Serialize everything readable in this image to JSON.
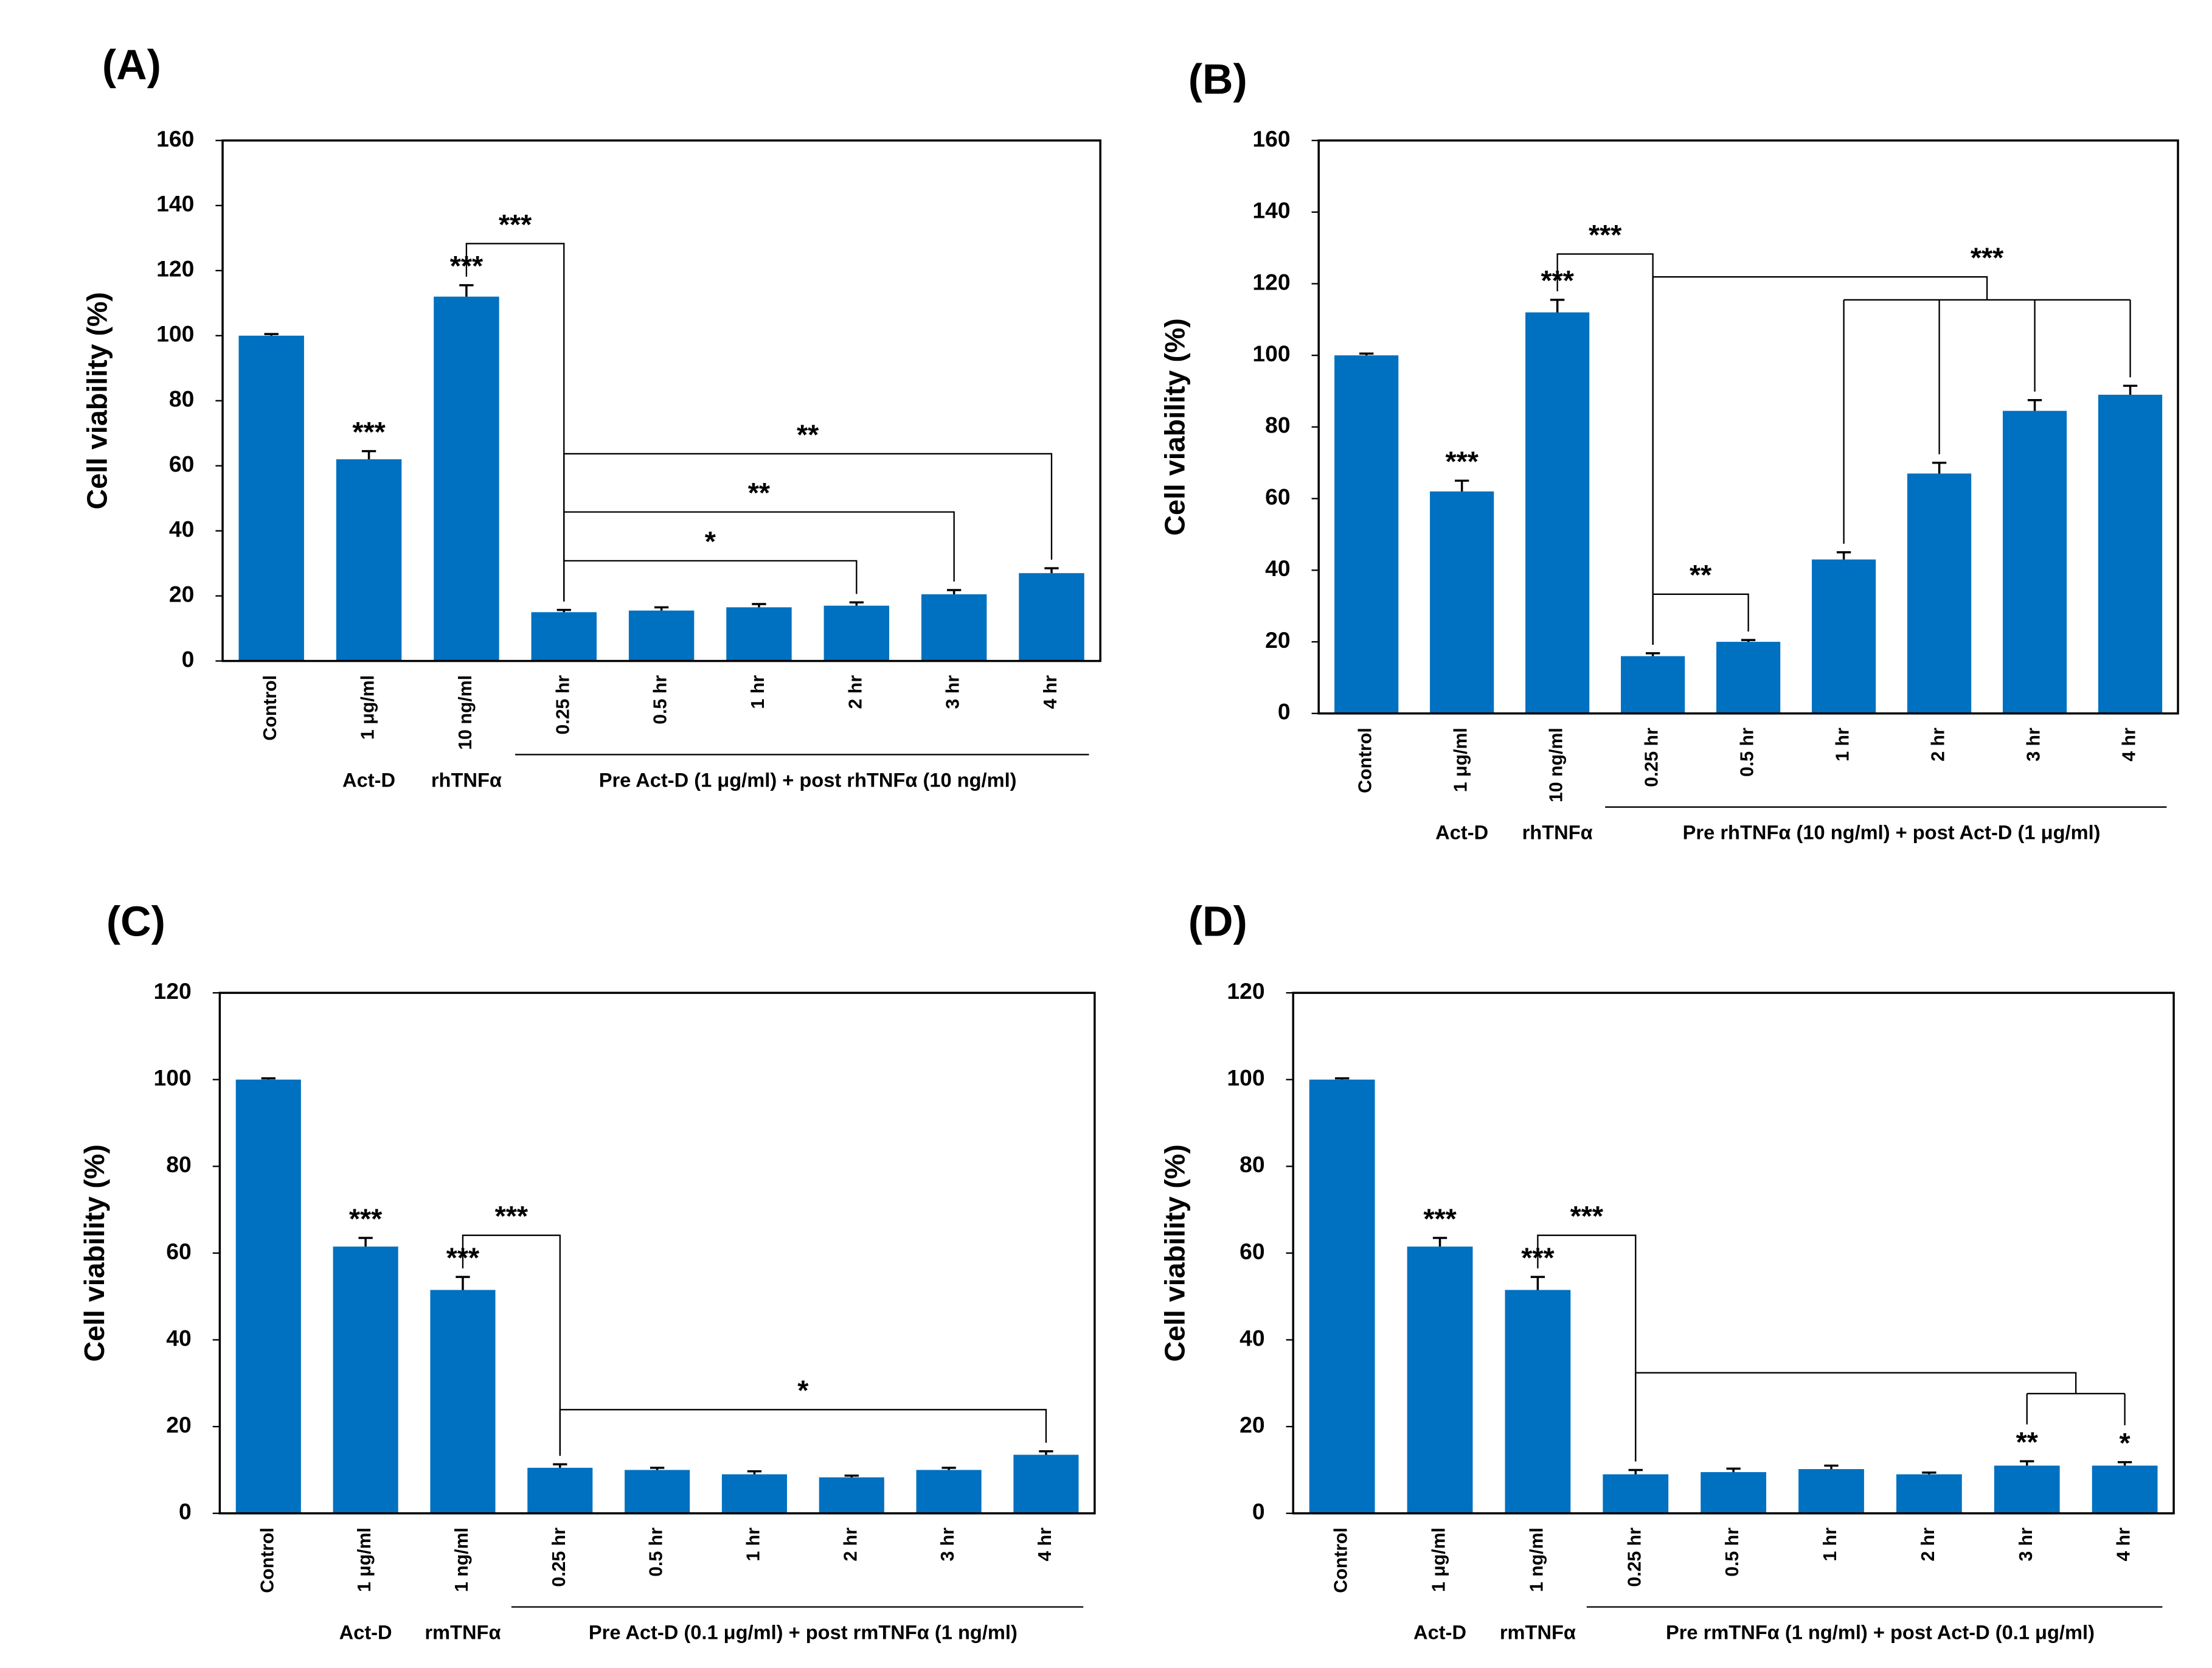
{
  "chart_data": [
    {
      "type": "bar",
      "panel": "(A)",
      "ylabel": "Cell viability (%)",
      "categories": [
        "Control",
        "1 μg/ml",
        "10 ng/ml",
        "0.25 hr",
        "0.5 hr",
        "1 hr",
        "2 hr",
        "3 hr",
        "4 hr"
      ],
      "values": [
        100,
        62,
        112,
        15,
        15.5,
        16.5,
        17,
        20.5,
        27
      ],
      "errors": [
        0.5,
        2.5,
        3.5,
        0.7,
        1,
        1,
        1,
        1.3,
        1.5
      ],
      "color": "#0070c0",
      "ylim": [
        0,
        160
      ],
      "yticks": [
        0,
        20,
        40,
        60,
        80,
        100,
        120,
        140,
        160
      ],
      "groups": [
        {
          "label": "Act-D",
          "span": [
            1,
            1
          ]
        },
        {
          "label": "rhTNFα",
          "span": [
            2,
            2
          ]
        },
        {
          "label": "Pre Act-D (1 μg/ml) + post rhTNFα (10 ng/ml)",
          "span": [
            3,
            8
          ]
        }
      ],
      "bar_labels": [
        {
          "index": 1,
          "label": "***"
        },
        {
          "index": 2,
          "label": "***"
        }
      ],
      "brackets": [
        {
          "from": 2,
          "to": [
            3
          ],
          "label": "***"
        },
        {
          "from": 3,
          "to": [
            6
          ],
          "label": "*"
        },
        {
          "from": 3,
          "to": [
            7
          ],
          "label": "**"
        },
        {
          "from": 3,
          "to": [
            8
          ],
          "label": "**"
        }
      ]
    },
    {
      "type": "bar",
      "panel": "(B)",
      "ylabel": "Cell viability (%)",
      "categories": [
        "Control",
        "1 μg/ml",
        "10 ng/ml",
        "0.25 hr",
        "0.5 hr",
        "1 hr",
        "2 hr",
        "3 hr",
        "4 hr"
      ],
      "values": [
        100,
        62,
        112,
        16,
        20,
        43,
        67,
        84.5,
        89
      ],
      "errors": [
        0.5,
        3,
        3.5,
        0.8,
        0.5,
        2,
        3,
        3,
        2.5
      ],
      "color": "#0070c0",
      "ylim": [
        0,
        160
      ],
      "yticks": [
        0,
        20,
        40,
        60,
        80,
        100,
        120,
        140,
        160
      ],
      "groups": [
        {
          "label": "Act-D",
          "span": [
            1,
            1
          ]
        },
        {
          "label": "rhTNFα",
          "span": [
            2,
            2
          ]
        },
        {
          "label": "Pre rhTNFα (10 ng/ml) + post Act-D (1 μg/ml)",
          "span": [
            3,
            8
          ]
        }
      ],
      "bar_labels": [
        {
          "index": 1,
          "label": "***"
        },
        {
          "index": 2,
          "label": "***"
        }
      ],
      "brackets": [
        {
          "from": 2,
          "to": [
            3
          ],
          "label": "***"
        },
        {
          "from": 3,
          "to": [
            4
          ],
          "label": "**"
        },
        {
          "from": 3,
          "to": [
            5,
            6,
            7,
            8
          ],
          "label": "***"
        }
      ]
    },
    {
      "type": "bar",
      "panel": "(C)",
      "ylabel": "Cell viability (%)",
      "categories": [
        "Control",
        "1 μg/ml",
        "1 ng/ml",
        "0.25 hr",
        "0.5 hr",
        "1 hr",
        "2 hr",
        "3 hr",
        "4 hr"
      ],
      "values": [
        100,
        61.5,
        51.5,
        10.5,
        10,
        9,
        8.3,
        10,
        13.5
      ],
      "errors": [
        0.3,
        2,
        3,
        0.8,
        0.5,
        0.7,
        0.4,
        0.5,
        0.8
      ],
      "color": "#0070c0",
      "ylim": [
        0,
        120
      ],
      "yticks": [
        0,
        20,
        40,
        60,
        80,
        100,
        120
      ],
      "groups": [
        {
          "label": "Act-D",
          "span": [
            1,
            1
          ]
        },
        {
          "label": "rmTNFα",
          "span": [
            2,
            2
          ]
        },
        {
          "label": "Pre Act-D (0.1 μg/ml) + post rmTNFα (1 ng/ml)",
          "span": [
            3,
            8
          ]
        }
      ],
      "bar_labels": [
        {
          "index": 1,
          "label": "***"
        },
        {
          "index": 2,
          "label": "***"
        }
      ],
      "brackets": [
        {
          "from": 2,
          "to": [
            3
          ],
          "label": "***"
        },
        {
          "from": 3,
          "to": [
            8
          ],
          "label": "*"
        }
      ]
    },
    {
      "type": "bar",
      "panel": "(D)",
      "ylabel": "Cell viability (%)",
      "categories": [
        "Control",
        "1 μg/ml",
        "1 ng/ml",
        "0.25 hr",
        "0.5 hr",
        "1 hr",
        "2 hr",
        "3 hr",
        "4 hr"
      ],
      "values": [
        100,
        61.5,
        51.5,
        9,
        9.5,
        10.2,
        9,
        11,
        11
      ],
      "errors": [
        0.3,
        2,
        3,
        1,
        0.8,
        0.8,
        0.4,
        1,
        0.8
      ],
      "color": "#0070c0",
      "ylim": [
        0,
        120
      ],
      "yticks": [
        0,
        20,
        40,
        60,
        80,
        100,
        120
      ],
      "groups": [
        {
          "label": "Act-D",
          "span": [
            1,
            1
          ]
        },
        {
          "label": "rmTNFα",
          "span": [
            2,
            2
          ]
        },
        {
          "label": "Pre rmTNFα (1 ng/ml) + post Act-D (0.1 μg/ml)",
          "span": [
            3,
            8
          ]
        }
      ],
      "bar_labels": [
        {
          "index": 1,
          "label": "***"
        },
        {
          "index": 2,
          "label": "***"
        },
        {
          "index": 7,
          "label": "**"
        },
        {
          "index": 8,
          "label": "*"
        }
      ],
      "brackets": [
        {
          "from": 2,
          "to": [
            3
          ],
          "label": "***"
        },
        {
          "from": 3,
          "to": [
            7,
            8
          ]
        }
      ]
    }
  ]
}
